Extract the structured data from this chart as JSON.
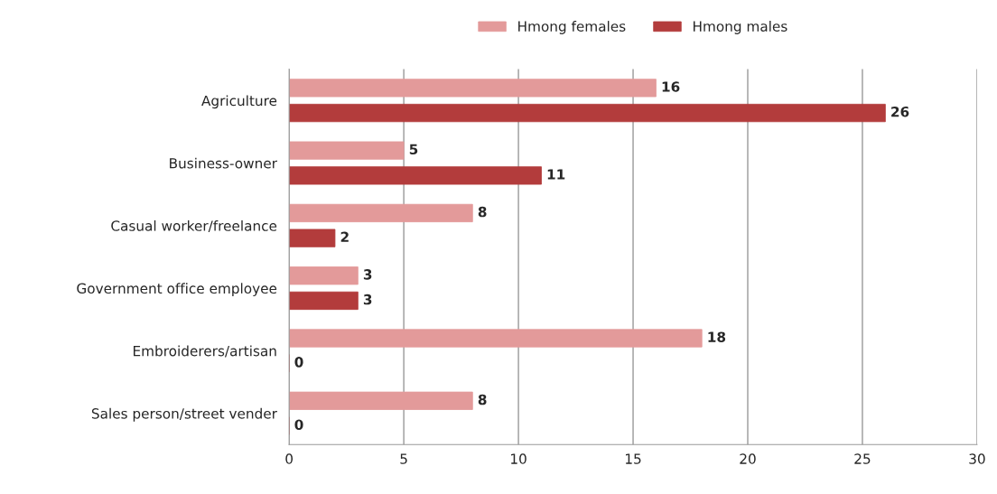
{
  "chart_data": {
    "type": "bar",
    "orientation": "horizontal",
    "categories": [
      "Agriculture",
      "Business-owner",
      "Casual worker/freelance",
      "Government office employee",
      "Embroiderers/artisan",
      "Sales person/street vender"
    ],
    "series": [
      {
        "name": "Hmong females",
        "color": "#e39a9a",
        "values": [
          16,
          5,
          8,
          3,
          18,
          8
        ]
      },
      {
        "name": "Hmong males",
        "color": "#b33c3c",
        "values": [
          26,
          11,
          2,
          3,
          0,
          0
        ]
      }
    ],
    "xlim": [
      0,
      30
    ],
    "xticks": [
      0,
      5,
      10,
      15,
      20,
      25,
      30
    ],
    "grid": "x",
    "legend": "top",
    "data_labels": true
  }
}
